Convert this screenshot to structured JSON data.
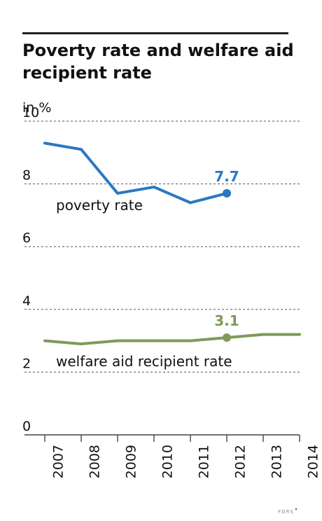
{
  "chart_data": {
    "type": "line",
    "title": "Poverty rate and welfare aid recipient rate",
    "unit_label": "in %",
    "x": [
      "2007",
      "2008",
      "2009",
      "2010",
      "2011",
      "2012",
      "2013",
      "2014"
    ],
    "ylim": [
      0,
      10
    ],
    "yticks": [
      "0",
      "2",
      "4",
      "6",
      "8",
      "10"
    ],
    "grid": true,
    "series": [
      {
        "name": "poverty rate",
        "color": "#2a78c2",
        "values": [
          9.3,
          9.1,
          7.7,
          7.9,
          7.4,
          7.7,
          null,
          null
        ],
        "highlight": {
          "index": 5,
          "label": "7.7"
        }
      },
      {
        "name": "welfare aid recipient rate",
        "color": "#7f9a59",
        "values": [
          3.0,
          2.9,
          3.0,
          3.0,
          3.0,
          3.1,
          3.2,
          3.2
        ],
        "highlight": {
          "index": 5,
          "label": "3.1"
        }
      }
    ]
  },
  "source": "FORS"
}
